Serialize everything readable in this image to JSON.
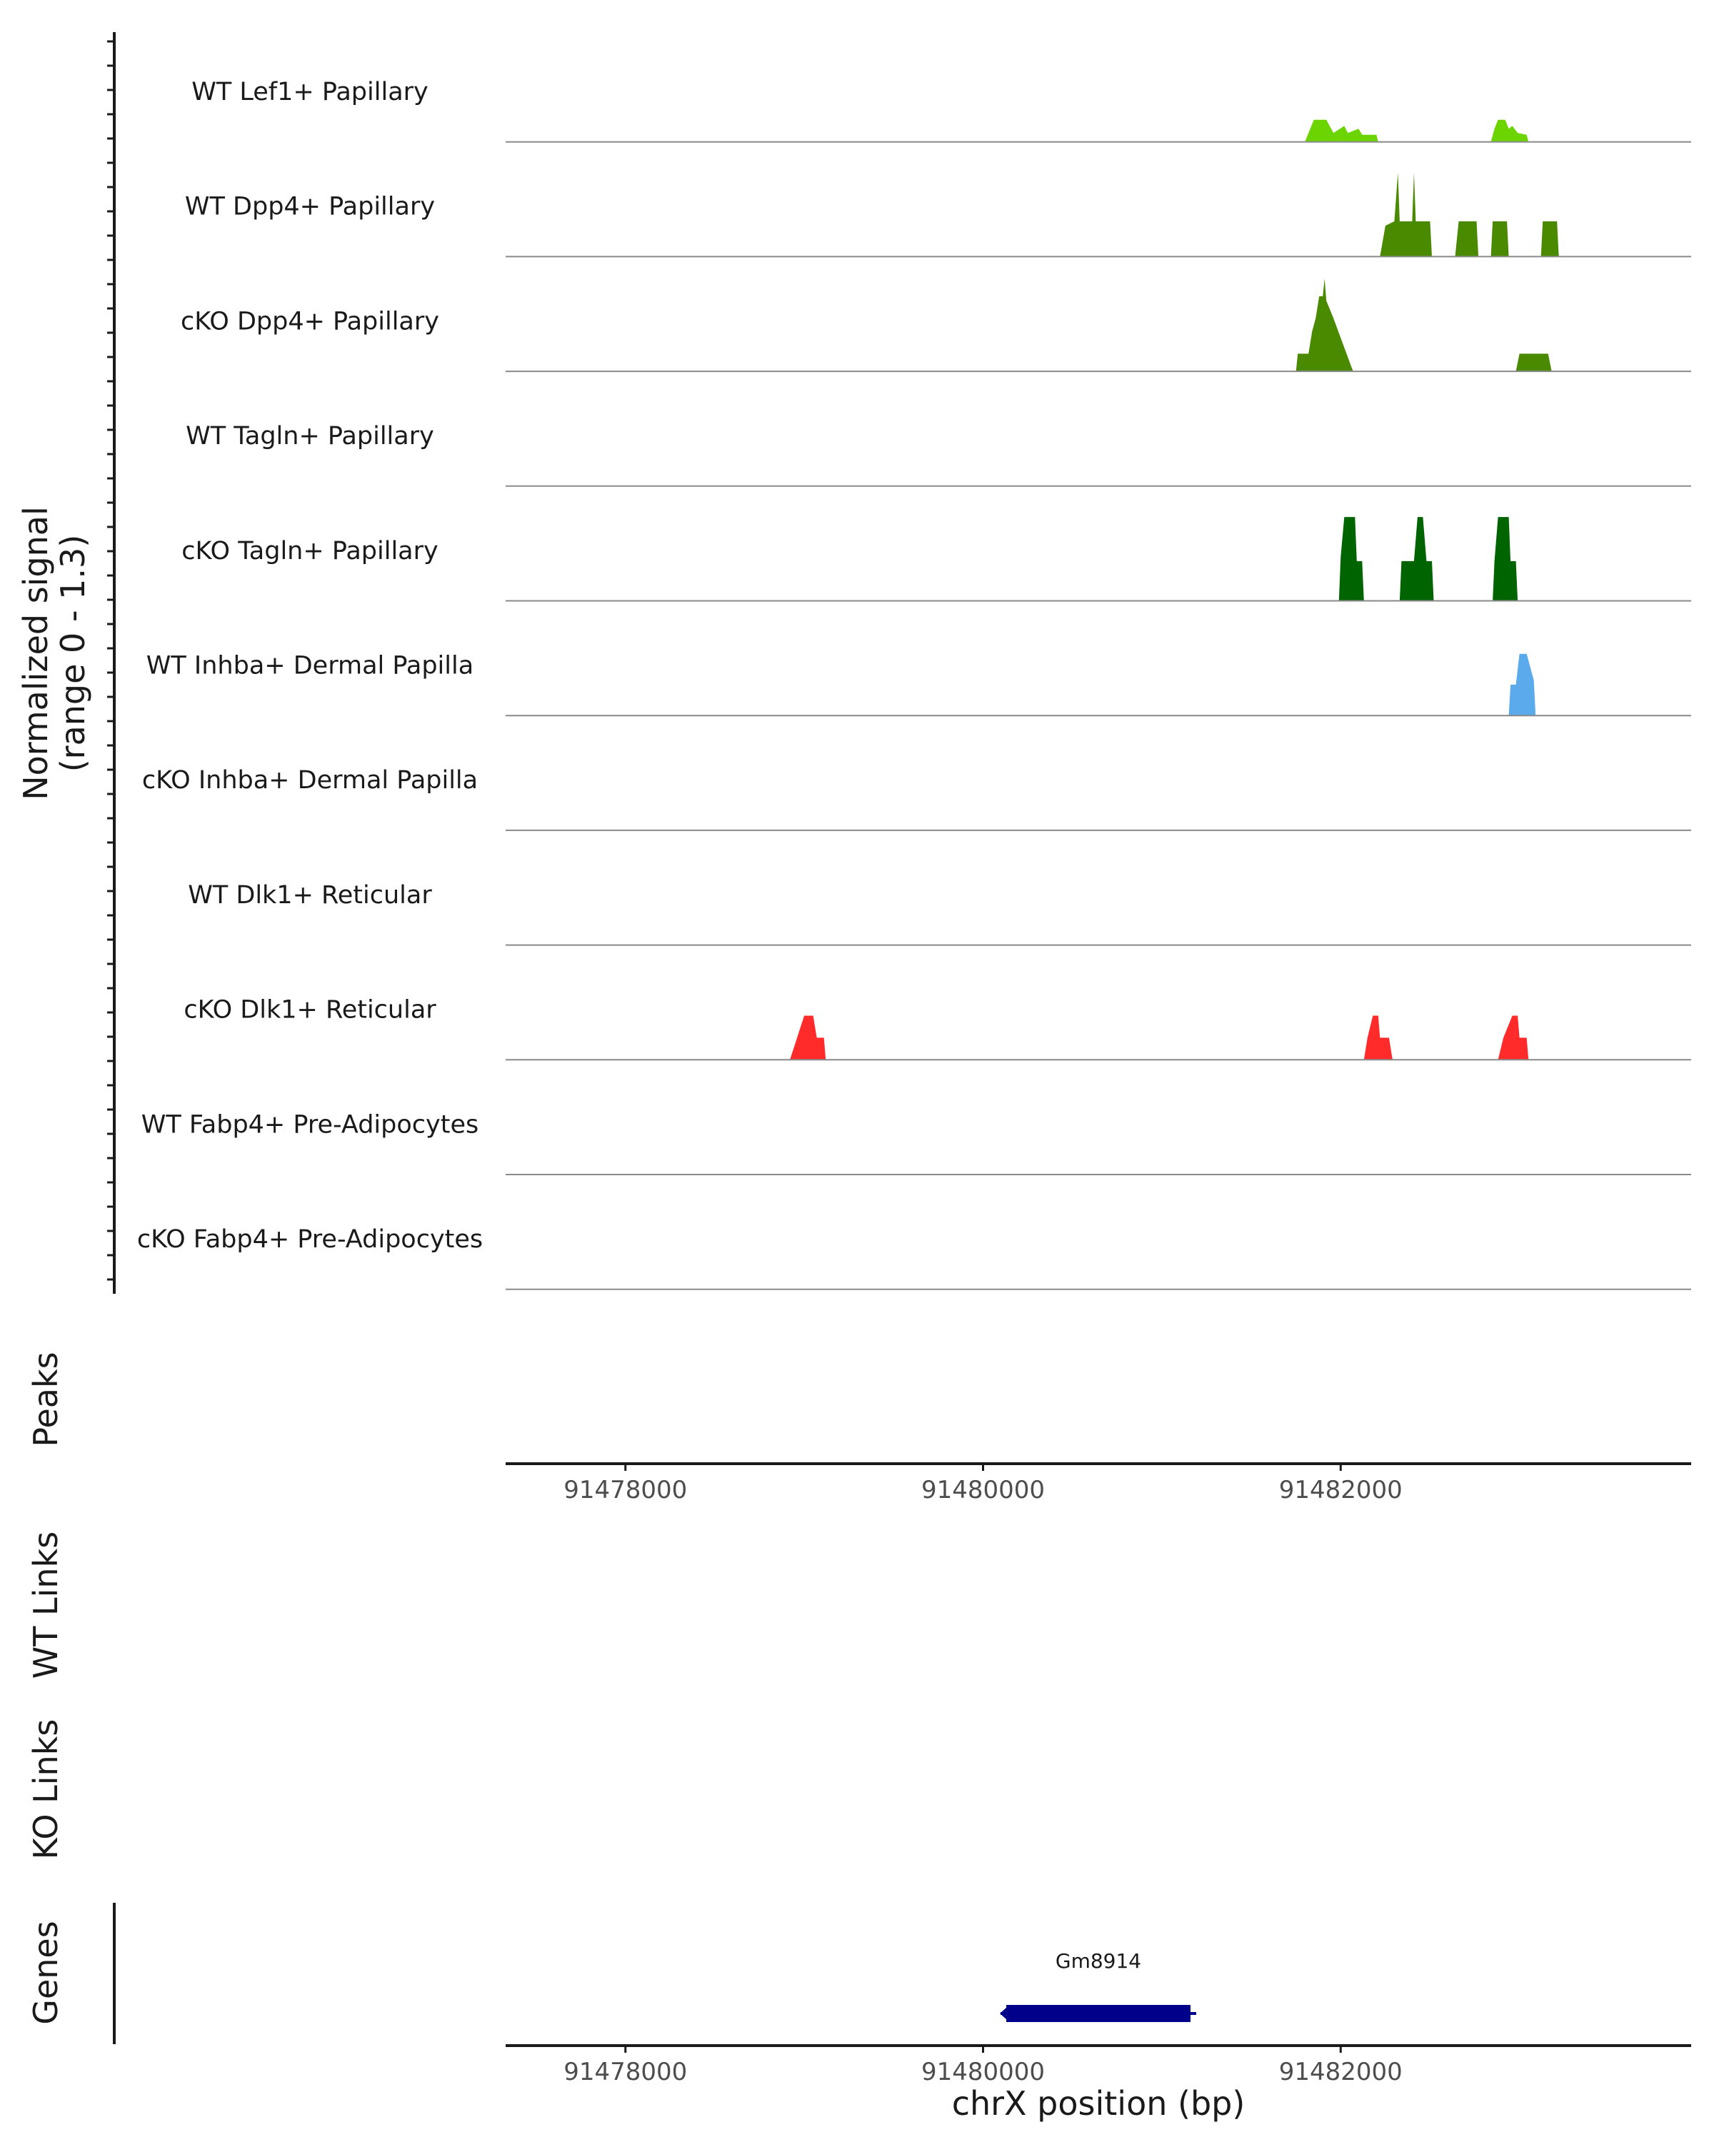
{
  "chart_data": {
    "type": "coverage-track",
    "y_axis_title_line1": "Normalized signal",
    "y_axis_title_line2": "(range 0 - 1.3)",
    "y_range": [
      0,
      1.3
    ],
    "x_range": [
      91477330,
      91483960
    ],
    "x_ticks": [
      {
        "value": 91478000,
        "label": "91478000"
      },
      {
        "value": 91480000,
        "label": "91480000"
      },
      {
        "value": 91482000,
        "label": "91482000"
      }
    ],
    "x_axis_title": "chrX position (bp)",
    "tracks": [
      {
        "name": "WT Lef1+ Papillary",
        "color": "#6cd400",
        "points": [
          [
            91481800,
            0
          ],
          [
            91481850,
            0.25
          ],
          [
            91481920,
            0.25
          ],
          [
            91481960,
            0.1
          ],
          [
            91482020,
            0.18
          ],
          [
            91482040,
            0.1
          ],
          [
            91482100,
            0.15
          ],
          [
            91482120,
            0.08
          ],
          [
            91482200,
            0.08
          ],
          [
            91482210,
            0
          ],
          [
            91482840,
            0
          ],
          [
            91482860,
            0.15
          ],
          [
            91482880,
            0.25
          ],
          [
            91482920,
            0.25
          ],
          [
            91482940,
            0.15
          ],
          [
            91482960,
            0.18
          ],
          [
            91482990,
            0.1
          ],
          [
            91483040,
            0.08
          ],
          [
            91483050,
            0
          ]
        ]
      },
      {
        "name": "WT Dpp4+ Papillary",
        "color": "#4a8a00",
        "points": [
          [
            91482220,
            0
          ],
          [
            91482250,
            0.35
          ],
          [
            91482300,
            0.4
          ],
          [
            91482320,
            0.95
          ],
          [
            91482330,
            0.4
          ],
          [
            91482400,
            0.4
          ],
          [
            91482410,
            0.95
          ],
          [
            91482420,
            0.4
          ],
          [
            91482500,
            0.4
          ],
          [
            91482510,
            0
          ],
          [
            91482640,
            0
          ],
          [
            91482660,
            0.4
          ],
          [
            91482760,
            0.4
          ],
          [
            91482770,
            0
          ],
          [
            91482840,
            0
          ],
          [
            91482850,
            0.4
          ],
          [
            91482930,
            0.4
          ],
          [
            91482940,
            0
          ],
          [
            91483120,
            0
          ],
          [
            91483130,
            0.4
          ],
          [
            91483210,
            0.4
          ],
          [
            91483220,
            0
          ]
        ]
      },
      {
        "name": "cKO Dpp4+ Papillary",
        "color": "#4a8a00",
        "points": [
          [
            91481750,
            0
          ],
          [
            91481760,
            0.2
          ],
          [
            91481820,
            0.2
          ],
          [
            91481840,
            0.45
          ],
          [
            91481860,
            0.6
          ],
          [
            91481880,
            0.85
          ],
          [
            91481900,
            0.85
          ],
          [
            91481910,
            1.05
          ],
          [
            91481920,
            0.8
          ],
          [
            91481960,
            0.6
          ],
          [
            91482060,
            0.05
          ],
          [
            91482070,
            0
          ],
          [
            91482980,
            0
          ],
          [
            91483000,
            0.2
          ],
          [
            91483160,
            0.2
          ],
          [
            91483180,
            0
          ]
        ]
      },
      {
        "name": "WT Tagln+ Papillary",
        "color": "#2d7a00",
        "points": []
      },
      {
        "name": "cKO Tagln+ Papillary",
        "color": "#006400",
        "points": [
          [
            91481990,
            0
          ],
          [
            91482000,
            0.5
          ],
          [
            91482020,
            0.95
          ],
          [
            91482080,
            0.95
          ],
          [
            91482090,
            0.45
          ],
          [
            91482120,
            0.45
          ],
          [
            91482130,
            0
          ],
          [
            91482330,
            0
          ],
          [
            91482340,
            0.45
          ],
          [
            91482410,
            0.45
          ],
          [
            91482430,
            0.95
          ],
          [
            91482460,
            0.95
          ],
          [
            91482480,
            0.45
          ],
          [
            91482510,
            0.45
          ],
          [
            91482520,
            0
          ],
          [
            91482850,
            0
          ],
          [
            91482860,
            0.45
          ],
          [
            91482880,
            0.95
          ],
          [
            91482940,
            0.95
          ],
          [
            91482950,
            0.45
          ],
          [
            91482980,
            0.45
          ],
          [
            91482990,
            0
          ]
        ]
      },
      {
        "name": "WT Inhba+ Dermal Papilla",
        "color": "#5aaaec",
        "points": [
          [
            91482940,
            0
          ],
          [
            91482950,
            0.35
          ],
          [
            91482980,
            0.35
          ],
          [
            91483000,
            0.7
          ],
          [
            91483040,
            0.7
          ],
          [
            91483080,
            0.4
          ],
          [
            91483090,
            0
          ]
        ]
      },
      {
        "name": "cKO Inhba+ Dermal Papilla",
        "color": "#4f9ae0",
        "points": []
      },
      {
        "name": "WT Dlk1+ Reticular",
        "color": "#ff6060",
        "points": []
      },
      {
        "name": "cKO Dlk1+ Reticular",
        "color": "#ff2a2a",
        "points": [
          [
            91478920,
            0
          ],
          [
            91478960,
            0.25
          ],
          [
            91479000,
            0.5
          ],
          [
            91479050,
            0.5
          ],
          [
            91479070,
            0.25
          ],
          [
            91479110,
            0.25
          ],
          [
            91479120,
            0
          ],
          [
            91482130,
            0
          ],
          [
            91482150,
            0.25
          ],
          [
            91482180,
            0.5
          ],
          [
            91482210,
            0.5
          ],
          [
            91482220,
            0.25
          ],
          [
            91482270,
            0.25
          ],
          [
            91482290,
            0
          ],
          [
            91482880,
            0
          ],
          [
            91482910,
            0.25
          ],
          [
            91482960,
            0.5
          ],
          [
            91482990,
            0.5
          ],
          [
            91483000,
            0.25
          ],
          [
            91483040,
            0.25
          ],
          [
            91483050,
            0
          ]
        ]
      },
      {
        "name": "WT Fabp4+ Pre-Adipocytes",
        "color": "#e06040",
        "points": []
      },
      {
        "name": "cKO Fabp4+ Pre-Adipocytes",
        "color": "#c04830",
        "points": []
      }
    ],
    "panels": {
      "peaks_title": "Peaks",
      "wt_links_title": "WT Links",
      "ko_links_title": "KO Links",
      "genes_title": "Genes"
    },
    "genes": [
      {
        "name": "Gm8914",
        "start": 91480130,
        "end": 91481160,
        "strand": "-",
        "color": "#00008b"
      }
    ]
  }
}
